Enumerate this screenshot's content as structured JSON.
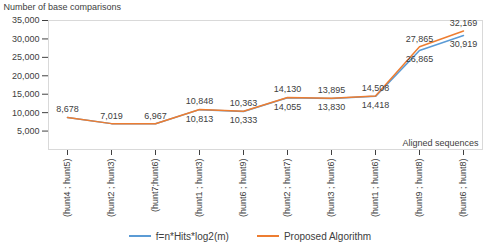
{
  "chart_data": {
    "type": "line",
    "y_label": "Number of base comparisons",
    "x_label": "Aligned sequences",
    "categories": [
      "(hunt4 ; hunt5)",
      "(hunt2 ; hunt3)",
      "(hunt7;hunt6)",
      "(hunt1 ; hunt3)",
      "(hunt6 ; hunt9)",
      "(hunt2 ; hunt7)",
      "(hunt3 ; hunt6)",
      "(hunt1 ; hunt6)",
      "(hunt9 ; hunt8)",
      "(hunt6 ; hunt8)"
    ],
    "series": [
      {
        "name": "f=n*Hits*log2(m)",
        "color": "#5b9bd5",
        "marker": "none",
        "line_style": "solid",
        "values": [
          8678,
          7019,
          6967,
          10813,
          10333,
          14055,
          13830,
          14418,
          26865,
          30919
        ],
        "value_labels": [
          "8,678",
          "7,019",
          "6,967",
          "10,813",
          "10,333",
          "14,055",
          "13,830",
          "14,418",
          "26,865",
          "30,919"
        ]
      },
      {
        "name": "Proposed Algorithm",
        "color": "#ed7d31",
        "marker": "none",
        "line_style": "solid",
        "values": [
          8678,
          7019,
          6967,
          10848,
          10363,
          14130,
          13895,
          14508,
          27865,
          32169
        ],
        "value_labels": [
          "8,678",
          "7,019",
          "6,967",
          "10,848",
          "10,363",
          "14,130",
          "13,895",
          "14,508",
          "27,865",
          "32,169"
        ]
      }
    ],
    "ylim": [
      0,
      35000
    ],
    "yticks": [
      {
        "value": 5000,
        "label": "5,000"
      },
      {
        "value": 10000,
        "label": "10,000"
      },
      {
        "value": 15000,
        "label": "15,000"
      },
      {
        "value": 20000,
        "label": "20,000"
      },
      {
        "value": 25000,
        "label": "25,000"
      },
      {
        "value": 30000,
        "label": "30,000"
      },
      {
        "value": 35000,
        "label": "35,000"
      }
    ],
    "grid": false,
    "data_labels": true,
    "legend": "bottom"
  }
}
